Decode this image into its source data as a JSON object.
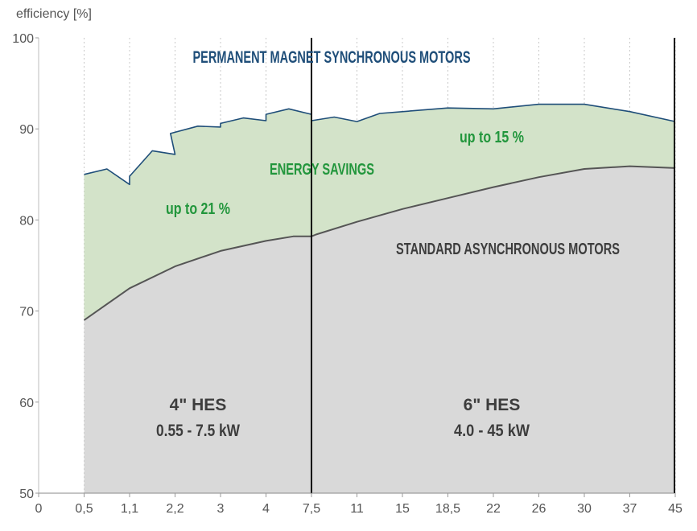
{
  "chart_data": {
    "type": "area",
    "ylabel": "efficiency [%]",
    "xlabel": "",
    "ylim": [
      50,
      100
    ],
    "yticks": [
      "50",
      "60",
      "70",
      "80",
      "90",
      "100"
    ],
    "x_ticks": [
      "0",
      "0,5",
      "1,1",
      "2,2",
      "3",
      "4",
      "7,5",
      "11",
      "15",
      "18,5",
      "22",
      "26",
      "30",
      "37",
      "45"
    ],
    "grid": "vertical dotted lines at each x tick",
    "series": [
      {
        "name": "PERMANENT MAGNET SYNCHRONOUS MOTORS",
        "color": "#1f4e79",
        "fill": "#d3e3c9",
        "points": [
          [
            1,
            85.0
          ],
          [
            1.5,
            85.6
          ],
          [
            2,
            83.9
          ],
          [
            2,
            84.8
          ],
          [
            2.5,
            87.6
          ],
          [
            3,
            87.2
          ],
          [
            2.9,
            89.5
          ],
          [
            3.5,
            90.3
          ],
          [
            4,
            90.2
          ],
          [
            4,
            90.6
          ],
          [
            4.5,
            91.2
          ],
          [
            5,
            90.9
          ],
          [
            5,
            91.6
          ],
          [
            5.5,
            92.2
          ],
          [
            6,
            91.6
          ],
          [
            6,
            90.9
          ],
          [
            6.5,
            91.3
          ],
          [
            7,
            90.8
          ],
          [
            7.5,
            91.7
          ],
          [
            9,
            92.3
          ],
          [
            10,
            92.2
          ],
          [
            11,
            92.7
          ],
          [
            12,
            92.7
          ],
          [
            13,
            91.9
          ],
          [
            14,
            90.8
          ]
        ]
      },
      {
        "name": "STANDARD ASYNCHRONOUS MOTORS",
        "color": "#555555",
        "fill": "#d9d9d9",
        "points": [
          [
            1,
            69.0
          ],
          [
            2,
            72.5
          ],
          [
            3,
            74.9
          ],
          [
            4,
            76.6
          ],
          [
            5,
            77.7
          ],
          [
            5.6,
            78.2
          ],
          [
            6,
            78.2
          ],
          [
            6,
            78.2
          ],
          [
            6.1,
            78.4
          ],
          [
            7,
            79.8
          ],
          [
            8,
            81.2
          ],
          [
            9,
            82.4
          ],
          [
            10,
            83.6
          ],
          [
            11,
            84.7
          ],
          [
            12,
            85.6
          ],
          [
            13,
            85.9
          ],
          [
            14,
            85.7
          ]
        ]
      }
    ],
    "annotations": {
      "pm_title": "PERMANENT MAGNET SYNCHRONOUS MOTORS",
      "energy_savings": "ENERGY SAVINGS",
      "savings_left": "up to 21 %",
      "savings_right": "up to 15 %",
      "std_title": "STANDARD ASYNCHRONOUS MOTORS",
      "left_range_line1": "4\" HES",
      "left_range_line2": "0.55 - 7.5 kW",
      "right_range_line1": "6\" HES",
      "right_range_line2": "4.0 - 45 kW"
    },
    "divider_at_tick": "7,5"
  }
}
